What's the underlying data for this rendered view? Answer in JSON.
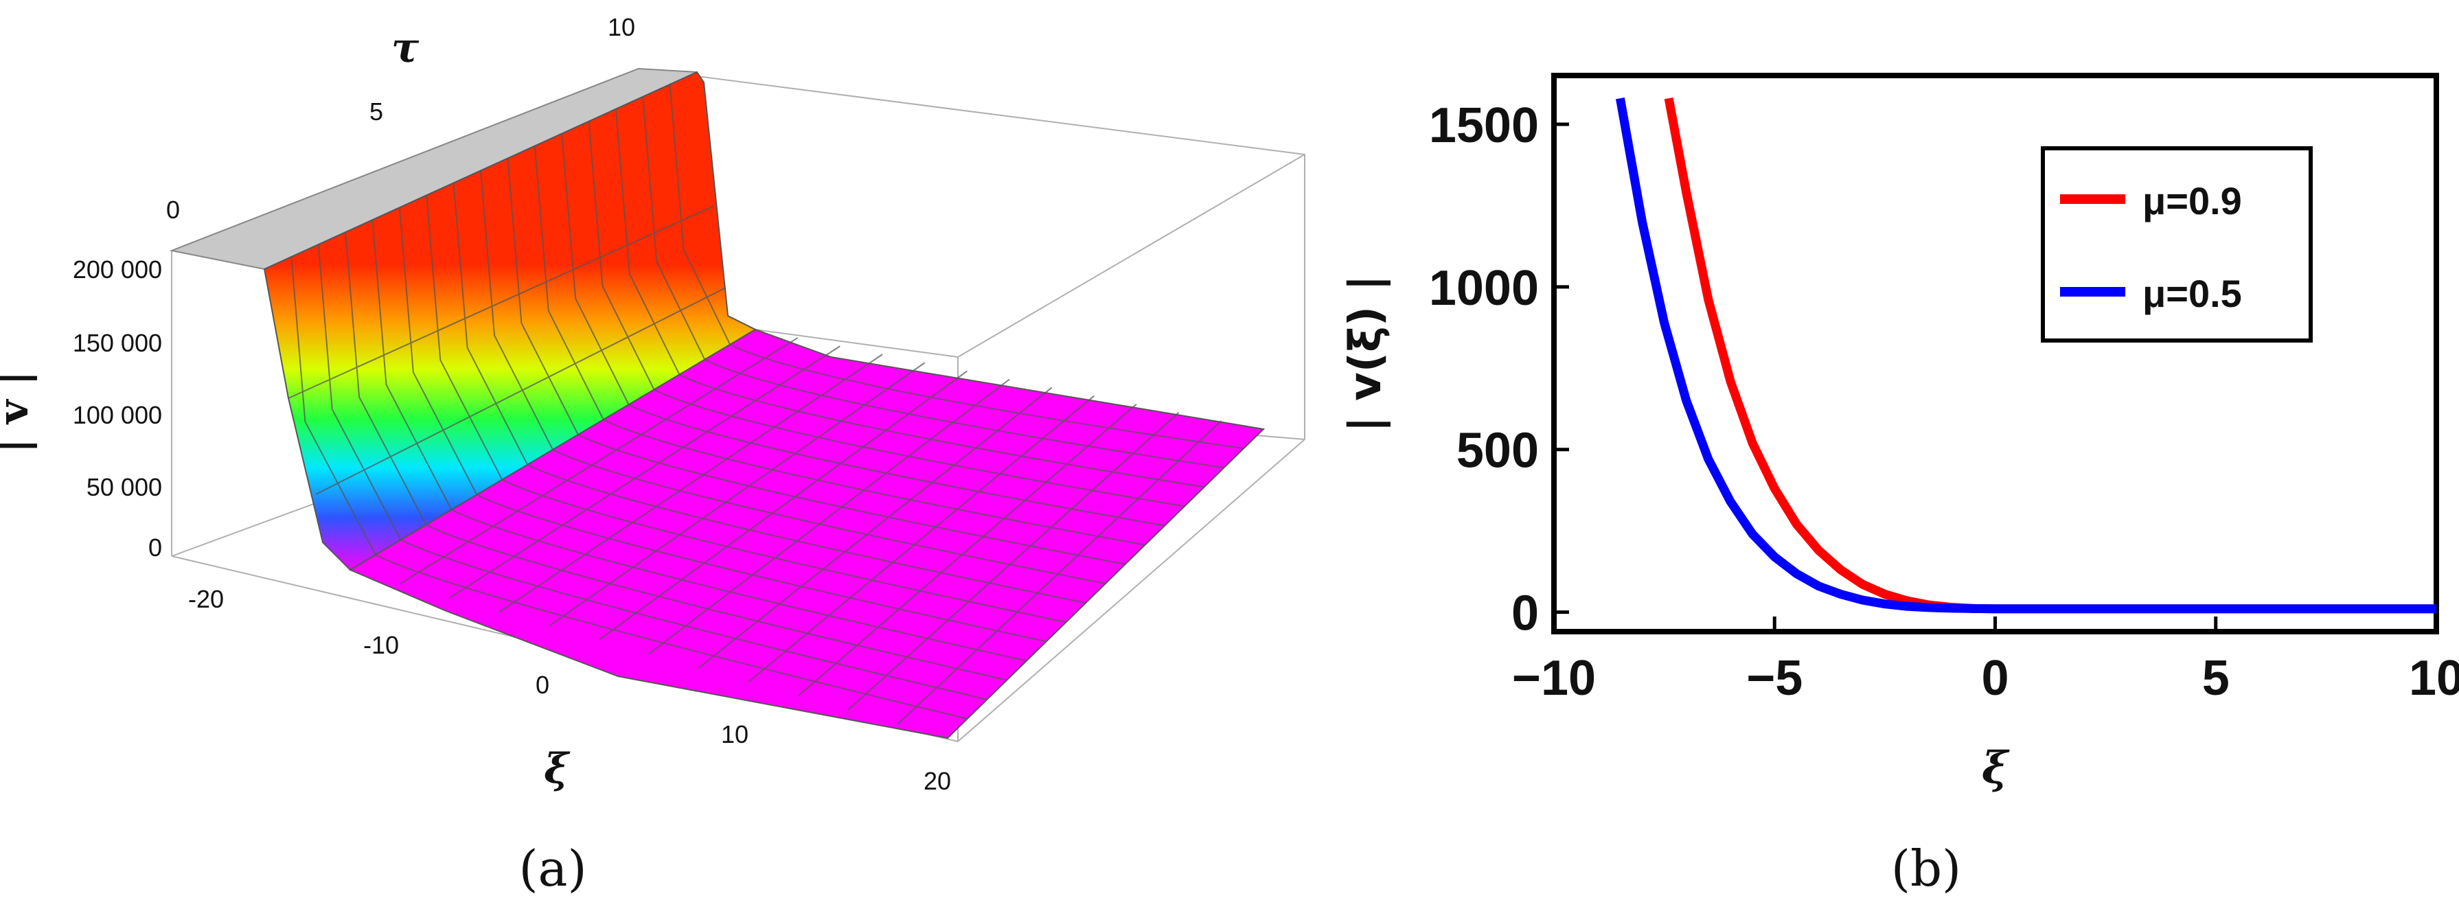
{
  "chart_data": [
    {
      "panel": "(a)",
      "type": "surface",
      "xlabel": "ξ",
      "ylabel": "τ",
      "zlabel": "| v |",
      "xlim": [
        -20,
        20
      ],
      "ylim": [
        0,
        10
      ],
      "zlim": [
        0,
        200000
      ],
      "x_ticks": [
        "-20",
        "-10",
        "0",
        "10",
        "20"
      ],
      "y_ticks": [
        "0",
        "5",
        "10"
      ],
      "z_ticks": [
        "0",
        "50 000",
        "100 000",
        "150 000",
        "200 000"
      ],
      "surface": {
        "xi": [
          -20,
          -16,
          -14,
          -12,
          -10,
          -8,
          -6,
          -4,
          -2,
          0,
          5,
          10,
          15,
          20
        ],
        "abs_v": [
          200000,
          200000,
          120000,
          20000,
          8000,
          4000,
          2000,
          1000,
          500,
          200,
          50,
          10,
          2,
          0
        ],
        "colormap": "rainbow",
        "plateau_color": "#c8c8c8"
      }
    },
    {
      "panel": "(b)",
      "type": "line",
      "xlabel": "ξ",
      "ylabel": "| v(ξ) |",
      "xlim": [
        -10,
        10
      ],
      "ylim": [
        -60,
        1650
      ],
      "x_ticks": [
        -10,
        -5,
        0,
        5,
        10
      ],
      "y_ticks": [
        0,
        500,
        1000,
        1500
      ],
      "legend_position": "top-right",
      "series": [
        {
          "name": "μ=0.9",
          "color": "#ff0000",
          "x": [
            -7.4,
            -7,
            -6.5,
            -6,
            -5.5,
            -5,
            -4.5,
            -4,
            -3.5,
            -3,
            -2.5,
            -2,
            -1.5,
            -1,
            -0.5,
            0,
            2,
            4,
            6,
            8,
            10
          ],
          "y": [
            1580,
            1290,
            960,
            710,
            520,
            380,
            270,
            190,
            130,
            85,
            55,
            35,
            22,
            15,
            11,
            10,
            10,
            10,
            10,
            10,
            10
          ]
        },
        {
          "name": "μ=0.5",
          "color": "#0000ff",
          "x": [
            -8.5,
            -8,
            -7.5,
            -7,
            -6.5,
            -6,
            -5.5,
            -5,
            -4.5,
            -4,
            -3.5,
            -3,
            -2.5,
            -2,
            -1.5,
            -1,
            -0.5,
            0,
            2,
            4,
            6,
            8,
            10
          ],
          "y": [
            1580,
            1200,
            890,
            650,
            470,
            340,
            240,
            170,
            118,
            80,
            55,
            37,
            25,
            18,
            14,
            12,
            11,
            10,
            10,
            10,
            10,
            10,
            10
          ]
        }
      ]
    }
  ]
}
